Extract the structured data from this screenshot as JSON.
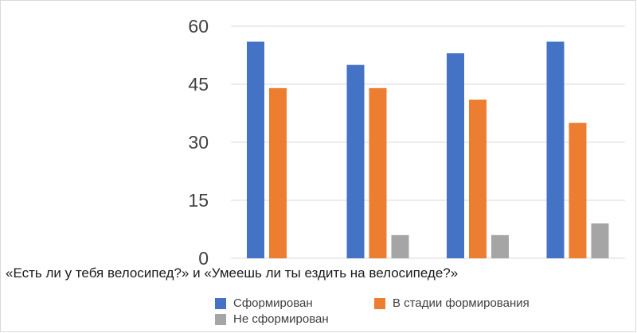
{
  "chart_data": {
    "type": "bar",
    "categories": [
      "",
      "",
      "",
      ""
    ],
    "series": [
      {
        "name": "Сформирован",
        "values": [
          56,
          50,
          53,
          56
        ],
        "color": "#4472c4"
      },
      {
        "name": "В стадии формирования",
        "values": [
          44,
          44,
          41,
          35
        ],
        "color": "#ed7d31"
      },
      {
        "name": "Не сформирован",
        "values": [
          0,
          6,
          6,
          9
        ],
        "color": "#a5a5a5"
      }
    ],
    "title": "",
    "xlabel": "«Есть ли у тебя велосипед?» и «Умеешь ли ты ездить на велосипеде?»",
    "ylabel": "",
    "ylim": [
      0,
      60
    ],
    "yticks": [
      "0",
      "15",
      "30",
      "45",
      "60"
    ],
    "grid": true,
    "legend_position": "bottom"
  }
}
